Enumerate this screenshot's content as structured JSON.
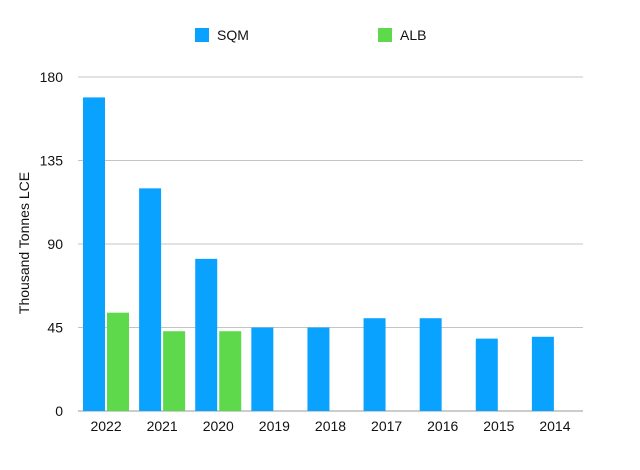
{
  "chart_data": {
    "type": "bar",
    "title": "",
    "xlabel": "",
    "ylabel": "Thousand Tonnes LCE",
    "categories": [
      "2022",
      "2021",
      "2020",
      "2019",
      "2018",
      "2017",
      "2016",
      "2015",
      "2014"
    ],
    "series": [
      {
        "name": "SQM",
        "color": "#0aa2ff",
        "values": [
          169,
          120,
          82,
          45,
          45,
          50,
          50,
          39,
          40
        ]
      },
      {
        "name": "ALB",
        "color": "#5fd94c",
        "values": [
          53,
          43,
          43,
          null,
          null,
          null,
          null,
          null,
          null
        ]
      }
    ],
    "ylim": [
      0,
      180
    ],
    "yticks": [
      "0",
      "45",
      "90",
      "135",
      "180"
    ],
    "grid": true,
    "legend_position": "top"
  }
}
